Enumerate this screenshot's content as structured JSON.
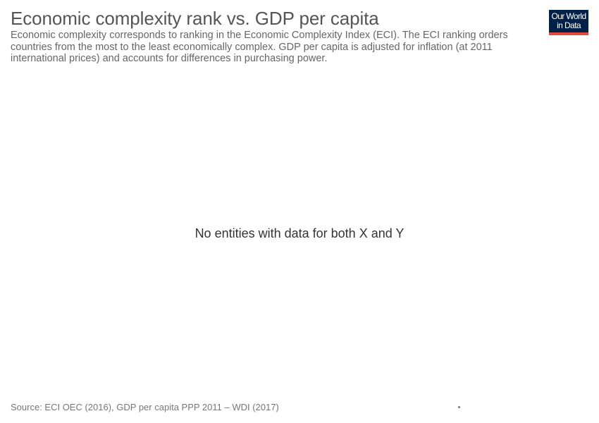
{
  "header": {
    "title": "Economic complexity rank vs. GDP per capita",
    "subtitle": "Economic complexity corresponds to ranking in the Economic Complexity Index (ECI). The ECI ranking orders countries from the most to the least economically complex. GDP per capita is adjusted for inflation (at 2011 international prices) and accounts for differences in purchasing power."
  },
  "logo": {
    "line1": "Our World",
    "line2": "in Data",
    "background": "#002147",
    "accent": "#e5493b"
  },
  "chart_data": {
    "type": "scatter",
    "title": "Economic complexity rank vs. GDP per capita",
    "subtitle": "Economic complexity corresponds to ranking in the Economic Complexity Index (ECI). The ECI ranking orders countries from the most to the least economically complex. GDP per capita is adjusted for inflation (at 2011 international prices) and accounts for differences in purchasing power.",
    "xlabel": "",
    "ylabel": "",
    "series": [],
    "grid": false,
    "empty_message": "No entities with data for both X and Y"
  },
  "footer": {
    "source": "Source: ECI OEC (2016), GDP per capita PPP 2011 – WDI (2017)"
  }
}
